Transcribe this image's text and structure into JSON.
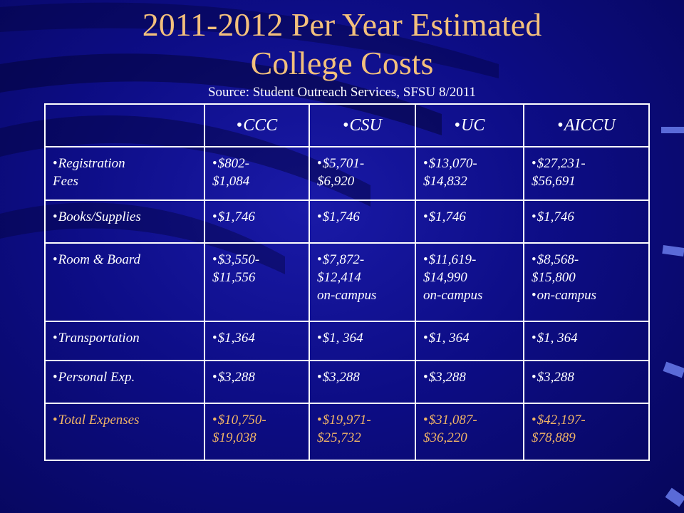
{
  "header": {
    "title": [
      "2011-2012 Per Year Estimated",
      "College Costs"
    ],
    "source": "Source:  Student Outreach Services, SFSU 8/2011"
  },
  "table": {
    "columns": [
      "CCC",
      "CSU",
      "UC",
      "AICCU"
    ],
    "rows": [
      [
        [
          [
            "Registration",
            "Fees"
          ]
        ],
        [
          [
            "$802-",
            "$1,084"
          ]
        ],
        [
          [
            "$5,701-",
            "$6,920"
          ]
        ],
        [
          [
            "$13,070-",
            "$14,832"
          ]
        ],
        [
          [
            "$27,231-",
            "$56,691"
          ]
        ]
      ],
      [
        [
          [
            "Books/Supplies"
          ]
        ],
        [
          [
            "$1,746"
          ]
        ],
        [
          [
            "$1,746"
          ]
        ],
        [
          [
            "$1,746"
          ]
        ],
        [
          [
            "$1,746"
          ]
        ]
      ],
      [
        [
          [
            "Room & Board"
          ]
        ],
        [
          [
            "$3,550-",
            "$11,556"
          ]
        ],
        [
          [
            "$7,872-",
            "$12,414",
            "on-campus"
          ]
        ],
        [
          [
            "$11,619-",
            "$14,990",
            "on-campus"
          ]
        ],
        [
          [
            "$8,568-",
            "$15,800"
          ],
          [
            "on-campus"
          ]
        ]
      ],
      [
        [
          [
            "Transportation"
          ]
        ],
        [
          [
            "$1,364"
          ]
        ],
        [
          [
            "$1, 364"
          ]
        ],
        [
          [
            "$1, 364"
          ]
        ],
        [
          [
            "$1, 364"
          ]
        ]
      ],
      [
        [
          [
            "Personal Exp."
          ]
        ],
        [
          [
            "$3,288"
          ]
        ],
        [
          [
            "$3,288"
          ]
        ],
        [
          [
            "$3,288"
          ]
        ],
        [
          [
            "$3,288"
          ]
        ]
      ],
      [
        [
          [
            "Total Expenses"
          ]
        ],
        [
          [
            "$10,750-",
            "$19,038"
          ]
        ],
        [
          [
            "$19,971-",
            "$25,732"
          ]
        ],
        [
          [
            "$31,087-",
            "$36,220"
          ]
        ],
        [
          [
            "$42,197-",
            "$78,889"
          ]
        ]
      ]
    ]
  }
}
